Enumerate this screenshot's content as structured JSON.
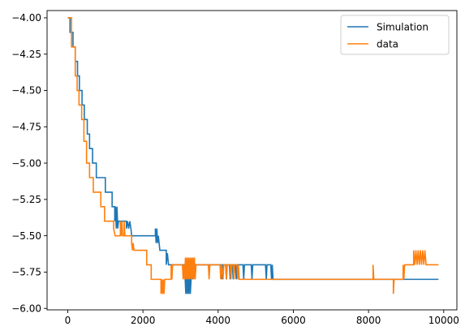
{
  "chart_data": {
    "type": "line",
    "title": "",
    "xlabel": "",
    "ylabel": "",
    "xlim": [
      -550,
      10350
    ],
    "ylim": [
      -6.01,
      -3.95
    ],
    "x_ticks": [
      0,
      2000,
      4000,
      6000,
      8000,
      10000
    ],
    "y_ticks": [
      -4.0,
      -4.25,
      -4.5,
      -4.75,
      -5.0,
      -5.25,
      -5.5,
      -5.75,
      -6.0
    ],
    "x_tick_labels": [
      "0",
      "2000",
      "4000",
      "6000",
      "8000",
      "10000"
    ],
    "y_tick_labels": [
      "−4.00",
      "−4.25",
      "−4.50",
      "−4.75",
      "−5.00",
      "−5.25",
      "−5.50",
      "−5.75",
      "−6.00"
    ],
    "grid": false,
    "legend_position": "top-right",
    "series": [
      {
        "name": "Simulation",
        "color": "#1f77b4",
        "points": [
          [
            0,
            -4.0
          ],
          [
            60,
            -4.0
          ],
          [
            60,
            -4.1
          ],
          [
            140,
            -4.1
          ],
          [
            140,
            -4.2
          ],
          [
            200,
            -4.2
          ],
          [
            200,
            -4.3
          ],
          [
            260,
            -4.3
          ],
          [
            260,
            -4.4
          ],
          [
            310,
            -4.4
          ],
          [
            310,
            -4.5
          ],
          [
            380,
            -4.5
          ],
          [
            380,
            -4.6
          ],
          [
            440,
            -4.6
          ],
          [
            440,
            -4.7
          ],
          [
            520,
            -4.7
          ],
          [
            520,
            -4.8
          ],
          [
            580,
            -4.8
          ],
          [
            580,
            -4.9
          ],
          [
            660,
            -4.9
          ],
          [
            660,
            -5.0
          ],
          [
            760,
            -5.0
          ],
          [
            760,
            -5.1
          ],
          [
            1000,
            -5.1
          ],
          [
            1000,
            -5.2
          ],
          [
            1180,
            -5.2
          ],
          [
            1180,
            -5.3
          ],
          [
            1250,
            -5.3
          ],
          [
            1250,
            -5.4
          ],
          [
            1270,
            -5.3
          ],
          [
            1290,
            -5.45
          ],
          [
            1310,
            -5.3
          ],
          [
            1330,
            -5.45
          ],
          [
            1350,
            -5.4
          ],
          [
            1560,
            -5.4
          ],
          [
            1560,
            -5.45
          ],
          [
            1590,
            -5.4
          ],
          [
            1620,
            -5.45
          ],
          [
            1650,
            -5.4
          ],
          [
            1680,
            -5.45
          ],
          [
            1700,
            -5.5
          ],
          [
            2330,
            -5.5
          ],
          [
            2330,
            -5.45
          ],
          [
            2350,
            -5.55
          ],
          [
            2370,
            -5.45
          ],
          [
            2390,
            -5.55
          ],
          [
            2410,
            -5.5
          ],
          [
            2450,
            -5.6
          ],
          [
            2620,
            -5.6
          ],
          [
            2620,
            -5.7
          ],
          [
            2650,
            -5.62
          ],
          [
            2680,
            -5.7
          ],
          [
            3120,
            -5.7
          ],
          [
            3120,
            -5.78
          ],
          [
            3140,
            -5.9
          ],
          [
            3160,
            -5.75
          ],
          [
            3180,
            -5.9
          ],
          [
            3200,
            -5.78
          ],
          [
            3220,
            -5.9
          ],
          [
            3240,
            -5.75
          ],
          [
            3260,
            -5.9
          ],
          [
            3280,
            -5.8
          ],
          [
            3300,
            -5.75
          ],
          [
            3320,
            -5.8
          ],
          [
            3350,
            -5.7
          ],
          [
            4020,
            -5.7
          ],
          [
            4080,
            -5.7
          ],
          [
            4100,
            -5.8
          ],
          [
            4120,
            -5.7
          ],
          [
            4200,
            -5.7
          ],
          [
            4220,
            -5.8
          ],
          [
            4240,
            -5.7
          ],
          [
            4300,
            -5.7
          ],
          [
            4320,
            -5.8
          ],
          [
            4340,
            -5.7
          ],
          [
            4380,
            -5.7
          ],
          [
            4400,
            -5.8
          ],
          [
            4420,
            -5.7
          ],
          [
            4460,
            -5.7
          ],
          [
            4480,
            -5.8
          ],
          [
            4500,
            -5.7
          ],
          [
            4660,
            -5.7
          ],
          [
            4680,
            -5.8
          ],
          [
            4700,
            -5.7
          ],
          [
            4880,
            -5.7
          ],
          [
            4900,
            -5.8
          ],
          [
            4920,
            -5.7
          ],
          [
            5260,
            -5.7
          ],
          [
            5280,
            -5.8
          ],
          [
            5300,
            -5.7
          ],
          [
            5400,
            -5.7
          ],
          [
            5420,
            -5.8
          ],
          [
            5440,
            -5.7
          ],
          [
            5460,
            -5.8
          ],
          [
            9860,
            -5.8
          ]
        ]
      },
      {
        "name": "data",
        "color": "#ff7f0e",
        "points": [
          [
            0,
            -4.0
          ],
          [
            100,
            -4.0
          ],
          [
            100,
            -4.2
          ],
          [
            200,
            -4.2
          ],
          [
            200,
            -4.4
          ],
          [
            250,
            -4.4
          ],
          [
            250,
            -4.5
          ],
          [
            300,
            -4.5
          ],
          [
            300,
            -4.6
          ],
          [
            370,
            -4.6
          ],
          [
            370,
            -4.7
          ],
          [
            430,
            -4.7
          ],
          [
            430,
            -4.85
          ],
          [
            500,
            -4.85
          ],
          [
            500,
            -5.0
          ],
          [
            580,
            -5.0
          ],
          [
            580,
            -5.1
          ],
          [
            680,
            -5.1
          ],
          [
            680,
            -5.2
          ],
          [
            880,
            -5.2
          ],
          [
            880,
            -5.3
          ],
          [
            980,
            -5.3
          ],
          [
            980,
            -5.4
          ],
          [
            1220,
            -5.4
          ],
          [
            1220,
            -5.45
          ],
          [
            1260,
            -5.5
          ],
          [
            1400,
            -5.5
          ],
          [
            1400,
            -5.4
          ],
          [
            1420,
            -5.5
          ],
          [
            1440,
            -5.4
          ],
          [
            1460,
            -5.5
          ],
          [
            1500,
            -5.5
          ],
          [
            1500,
            -5.4
          ],
          [
            1520,
            -5.5
          ],
          [
            1700,
            -5.5
          ],
          [
            1700,
            -5.55
          ],
          [
            1720,
            -5.6
          ],
          [
            1740,
            -5.55
          ],
          [
            1760,
            -5.6
          ],
          [
            2100,
            -5.6
          ],
          [
            2100,
            -5.7
          ],
          [
            2220,
            -5.7
          ],
          [
            2220,
            -5.8
          ],
          [
            2480,
            -5.8
          ],
          [
            2480,
            -5.9
          ],
          [
            2500,
            -5.8
          ],
          [
            2520,
            -5.9
          ],
          [
            2540,
            -5.8
          ],
          [
            2560,
            -5.9
          ],
          [
            2580,
            -5.8
          ],
          [
            2750,
            -5.8
          ],
          [
            2750,
            -5.7
          ],
          [
            2770,
            -5.8
          ],
          [
            2790,
            -5.7
          ],
          [
            3050,
            -5.7
          ],
          [
            3070,
            -5.8
          ],
          [
            3090,
            -5.7
          ],
          [
            3110,
            -5.8
          ],
          [
            3130,
            -5.65
          ],
          [
            3150,
            -5.8
          ],
          [
            3170,
            -5.65
          ],
          [
            3190,
            -5.8
          ],
          [
            3210,
            -5.65
          ],
          [
            3230,
            -5.8
          ],
          [
            3250,
            -5.65
          ],
          [
            3270,
            -5.8
          ],
          [
            3290,
            -5.65
          ],
          [
            3310,
            -5.8
          ],
          [
            3330,
            -5.65
          ],
          [
            3350,
            -5.8
          ],
          [
            3370,
            -5.65
          ],
          [
            3390,
            -5.8
          ],
          [
            3410,
            -5.7
          ],
          [
            3740,
            -5.7
          ],
          [
            3760,
            -5.8
          ],
          [
            3780,
            -5.7
          ],
          [
            4050,
            -5.7
          ],
          [
            4070,
            -5.8
          ],
          [
            4090,
            -5.7
          ],
          [
            4130,
            -5.8
          ],
          [
            4150,
            -5.7
          ],
          [
            4200,
            -5.7
          ],
          [
            4220,
            -5.8
          ],
          [
            4240,
            -5.7
          ],
          [
            4320,
            -5.7
          ],
          [
            4340,
            -5.8
          ],
          [
            4360,
            -5.7
          ],
          [
            4400,
            -5.7
          ],
          [
            4420,
            -5.8
          ],
          [
            4440,
            -5.7
          ],
          [
            4500,
            -5.7
          ],
          [
            4520,
            -5.8
          ],
          [
            4540,
            -5.7
          ],
          [
            4560,
            -5.8
          ],
          [
            8120,
            -5.8
          ],
          [
            8120,
            -5.7
          ],
          [
            8140,
            -5.8
          ],
          [
            8660,
            -5.8
          ],
          [
            8660,
            -5.9
          ],
          [
            8680,
            -5.8
          ],
          [
            8920,
            -5.8
          ],
          [
            8920,
            -5.7
          ],
          [
            8940,
            -5.8
          ],
          [
            8960,
            -5.7
          ],
          [
            9200,
            -5.7
          ],
          [
            9200,
            -5.6
          ],
          [
            9230,
            -5.7
          ],
          [
            9260,
            -5.6
          ],
          [
            9290,
            -5.7
          ],
          [
            9320,
            -5.6
          ],
          [
            9350,
            -5.7
          ],
          [
            9380,
            -5.6
          ],
          [
            9410,
            -5.7
          ],
          [
            9440,
            -5.6
          ],
          [
            9470,
            -5.7
          ],
          [
            9500,
            -5.6
          ],
          [
            9530,
            -5.7
          ],
          [
            9860,
            -5.7
          ]
        ]
      }
    ]
  }
}
